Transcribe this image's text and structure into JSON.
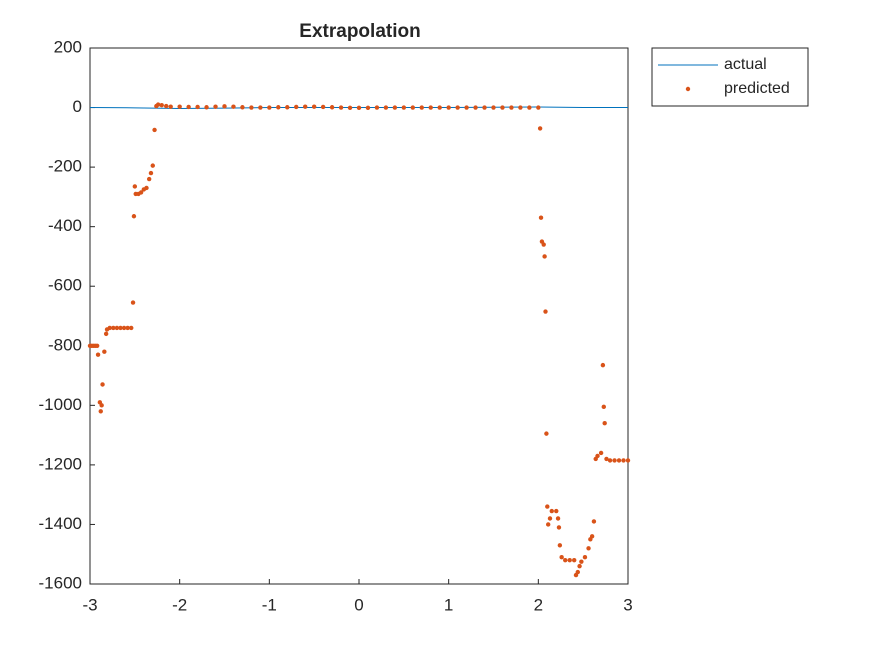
{
  "chart_data": {
    "type": "line-scatter",
    "title": "Extrapolation",
    "xlim": [
      -3,
      3
    ],
    "xticks": [
      -3,
      -2,
      -1,
      0,
      1,
      2,
      3
    ],
    "ylim": [
      -1600,
      200
    ],
    "yticks": [
      -1600,
      -1400,
      -1200,
      -1000,
      -800,
      -600,
      -400,
      -200,
      0,
      200
    ],
    "legend": "outside-top-right",
    "series": [
      {
        "name": "actual",
        "style": "line",
        "color": "#0072bd",
        "x": [
          -3,
          -2.5,
          -2,
          -1.5,
          -1,
          -0.5,
          0,
          0.5,
          1,
          1.5,
          2,
          2.5,
          3
        ],
        "values": [
          0,
          -1,
          -3,
          -2,
          0,
          0,
          0,
          0,
          0,
          1,
          2,
          0,
          0
        ]
      },
      {
        "name": "predicted",
        "style": "scatter",
        "color": "#d95319",
        "x": [
          -3,
          -2.98,
          -2.96,
          -2.94,
          -2.92,
          -2.91,
          -2.89,
          -2.88,
          -2.87,
          -2.86,
          -2.84,
          -2.82,
          -2.81,
          -2.78,
          -2.74,
          -2.7,
          -2.66,
          -2.62,
          -2.58,
          -2.54,
          -2.52,
          -2.51,
          -2.5,
          -2.49,
          -2.46,
          -2.43,
          -2.4,
          -2.37,
          -2.34,
          -2.32,
          -2.3,
          -2.28,
          -2.26,
          -2.24,
          -2.2,
          -2.15,
          -2.1,
          -2,
          -1.9,
          -1.8,
          -1.7,
          -1.6,
          -1.5,
          -1.4,
          -1.3,
          -1.2,
          -1.1,
          -1,
          -0.9,
          -0.8,
          -0.7,
          -0.6,
          -0.5,
          -0.4,
          -0.3,
          -0.2,
          -0.1,
          0,
          0.1,
          0.2,
          0.3,
          0.4,
          0.5,
          0.6,
          0.7,
          0.8,
          0.9,
          1,
          1.1,
          1.2,
          1.3,
          1.4,
          1.5,
          1.6,
          1.7,
          1.8,
          1.9,
          2,
          2.02,
          2.03,
          2.04,
          2.06,
          2.07,
          2.08,
          2.09,
          2.1,
          2.11,
          2.13,
          2.15,
          2.2,
          2.22,
          2.23,
          2.24,
          2.26,
          2.3,
          2.35,
          2.4,
          2.42,
          2.44,
          2.46,
          2.48,
          2.52,
          2.56,
          2.58,
          2.6,
          2.62,
          2.64,
          2.66,
          2.7,
          2.72,
          2.73,
          2.74,
          2.76,
          2.8,
          2.85,
          2.9,
          2.95,
          3
        ],
        "values": [
          -800,
          -800,
          -800,
          -800,
          -800,
          -830,
          -990,
          -1020,
          -1000,
          -930,
          -820,
          -760,
          -745,
          -740,
          -740,
          -740,
          -740,
          -740,
          -740,
          -740,
          -655,
          -365,
          -265,
          -290,
          -290,
          -285,
          -275,
          -270,
          -240,
          -220,
          -195,
          -75,
          5,
          10,
          8,
          5,
          3,
          3,
          2,
          2,
          1,
          3,
          4,
          3,
          1,
          0,
          0,
          0,
          1,
          1,
          2,
          3,
          3,
          2,
          1,
          0,
          -1,
          -1,
          -1,
          0,
          0,
          0,
          0,
          0,
          0,
          0,
          0,
          0,
          0,
          0,
          0,
          0,
          0,
          0,
          0,
          0,
          0,
          0,
          -70,
          -370,
          -450,
          -460,
          -500,
          -685,
          -1095,
          -1340,
          -1400,
          -1380,
          -1355,
          -1355,
          -1380,
          -1410,
          -1470,
          -1510,
          -1520,
          -1520,
          -1520,
          -1570,
          -1560,
          -1540,
          -1525,
          -1510,
          -1480,
          -1450,
          -1440,
          -1390,
          -1180,
          -1170,
          -1160,
          -865,
          -1005,
          -1060,
          -1180,
          -1185,
          -1185,
          -1185,
          -1185,
          -1185
        ]
      }
    ]
  }
}
